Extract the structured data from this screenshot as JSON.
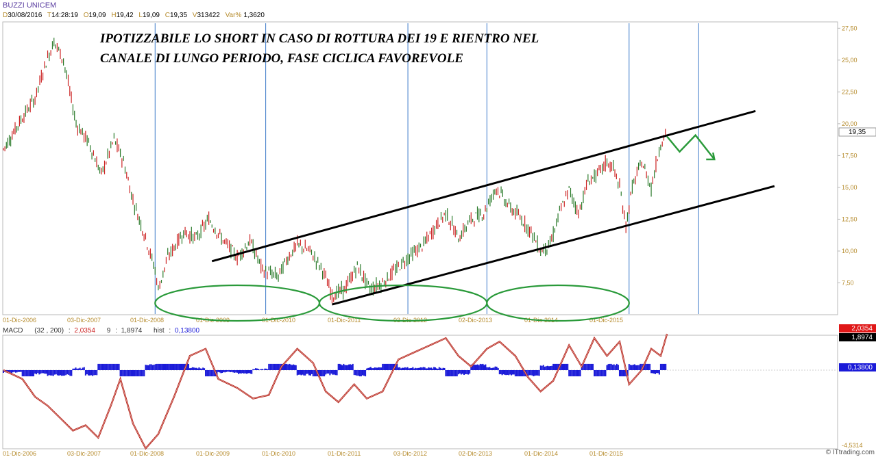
{
  "header": {
    "title": "BUZZI UNICEM",
    "date_label": "D",
    "date": "30/08/2016",
    "time_label": "T",
    "time": "14:28:19",
    "open_label": "O",
    "open": "19,09",
    "high_label": "H",
    "high": "19,42",
    "low_label": "L",
    "low": "19,09",
    "close_label": "C",
    "close": "19,35",
    "volume_label": "V",
    "volume": "313422",
    "var_label": "Var%",
    "var": "1,3620"
  },
  "annotation": {
    "line1": "IPOTIZZABILE LO SHORT IN CASO DI ROTTURA DEI 19 E RIENTRO NEL",
    "line2": "CANALE DI LUNGO PERIODO, FASE CICLICA FAVOREVOLE"
  },
  "chart_data": {
    "type": "line",
    "title": "BUZZI UNICEM",
    "price_panel": {
      "y_ticks": [
        "27,50",
        "25,00",
        "22,50",
        "20,00",
        "17,50",
        "15,00",
        "12,50",
        "10,00",
        "7,50"
      ],
      "ylim": [
        5.0,
        28.0
      ],
      "last_price_label": "19,35",
      "last_price": 19.35,
      "x_ticks": [
        "01-Dic-2006",
        "03-Dic-2007",
        "01-Dic-2008",
        "01-Dic-2009",
        "01-Dic-2010",
        "01-Dic-2011",
        "03-Dic-2012",
        "02-Dic-2013",
        "01-Dic-2014",
        "01-Dic-2015"
      ],
      "price_series": [
        {
          "t": 2006.6,
          "v": 18.0
        },
        {
          "t": 2006.9,
          "v": 20.5
        },
        {
          "t": 2007.1,
          "v": 22.0
        },
        {
          "t": 2007.25,
          "v": 24.5
        },
        {
          "t": 2007.4,
          "v": 26.5
        },
        {
          "t": 2007.55,
          "v": 25.0
        },
        {
          "t": 2007.75,
          "v": 20.0
        },
        {
          "t": 2007.95,
          "v": 18.5
        },
        {
          "t": 2008.15,
          "v": 16.0
        },
        {
          "t": 2008.35,
          "v": 18.8
        },
        {
          "t": 2008.5,
          "v": 17.0
        },
        {
          "t": 2008.65,
          "v": 14.0
        },
        {
          "t": 2008.85,
          "v": 11.0
        },
        {
          "t": 2009.0,
          "v": 8.5
        },
        {
          "t": 2009.05,
          "v": 7.0
        },
        {
          "t": 2009.2,
          "v": 9.5
        },
        {
          "t": 2009.45,
          "v": 11.5
        },
        {
          "t": 2009.65,
          "v": 11.0
        },
        {
          "t": 2009.85,
          "v": 12.5
        },
        {
          "t": 2010.05,
          "v": 11.0
        },
        {
          "t": 2010.3,
          "v": 9.5
        },
        {
          "t": 2010.5,
          "v": 10.8
        },
        {
          "t": 2010.7,
          "v": 8.5
        },
        {
          "t": 2010.95,
          "v": 8.0
        },
        {
          "t": 2011.1,
          "v": 9.5
        },
        {
          "t": 2011.25,
          "v": 10.5
        },
        {
          "t": 2011.45,
          "v": 10.0
        },
        {
          "t": 2011.65,
          "v": 8.5
        },
        {
          "t": 2011.8,
          "v": 6.5
        },
        {
          "t": 2012.0,
          "v": 7.0
        },
        {
          "t": 2012.2,
          "v": 8.8
        },
        {
          "t": 2012.4,
          "v": 7.0
        },
        {
          "t": 2012.6,
          "v": 7.5
        },
        {
          "t": 2012.8,
          "v": 8.5
        },
        {
          "t": 2013.0,
          "v": 9.5
        },
        {
          "t": 2013.25,
          "v": 10.5
        },
        {
          "t": 2013.45,
          "v": 12.0
        },
        {
          "t": 2013.6,
          "v": 13.0
        },
        {
          "t": 2013.8,
          "v": 11.0
        },
        {
          "t": 2014.0,
          "v": 12.5
        },
        {
          "t": 2014.2,
          "v": 13.0
        },
        {
          "t": 2014.4,
          "v": 15.0
        },
        {
          "t": 2014.6,
          "v": 13.5
        },
        {
          "t": 2014.8,
          "v": 12.5
        },
        {
          "t": 2014.95,
          "v": 11.5
        },
        {
          "t": 2015.1,
          "v": 10.0
        },
        {
          "t": 2015.25,
          "v": 10.5
        },
        {
          "t": 2015.4,
          "v": 13.0
        },
        {
          "t": 2015.55,
          "v": 14.8
        },
        {
          "t": 2015.7,
          "v": 13.0
        },
        {
          "t": 2015.85,
          "v": 15.5
        },
        {
          "t": 2016.0,
          "v": 16.0
        },
        {
          "t": 2016.15,
          "v": 17.0
        },
        {
          "t": 2016.25,
          "v": 16.5
        },
        {
          "t": 2016.35,
          "v": 15.0
        },
        {
          "t": 2016.45,
          "v": 12.0
        },
        {
          "t": 2016.55,
          "v": 15.0
        },
        {
          "t": 2016.7,
          "v": 17.0
        },
        {
          "t": 2016.85,
          "v": 15.0
        },
        {
          "t": 2017.0,
          "v": 18.5
        },
        {
          "t": 2017.1,
          "v": 19.35
        }
      ],
      "channel_upper": [
        [
          2009.9,
          9.2
        ],
        [
          2018.5,
          21.0
        ]
      ],
      "channel_lower": [
        [
          2011.8,
          5.8
        ],
        [
          2018.8,
          15.1
        ]
      ],
      "forecast_arrow": [
        [
          2017.1,
          19.0
        ],
        [
          2017.3,
          17.8
        ],
        [
          2017.55,
          19.1
        ],
        [
          2017.85,
          17.2
        ]
      ],
      "cycle_lines_t": [
        2009.0,
        2010.75,
        2013.0,
        2014.25,
        2016.5,
        2017.6
      ],
      "cycle_ellipses": [
        {
          "t_from": 2009.0,
          "t_to": 2011.6
        },
        {
          "t_from": 2011.6,
          "t_to": 2014.25
        },
        {
          "t_from": 2014.25,
          "t_to": 2016.5
        }
      ]
    },
    "macd_panel": {
      "label": "MACD",
      "params": "(32 , 200)",
      "macd_value": "2,0354",
      "signal_label": "9",
      "signal_value": "1,8974",
      "hist_label": "hist",
      "hist_value": "0,13800",
      "min_label": "-4,5314",
      "macd_series": [
        {
          "t": 2006.6,
          "v": 0.0
        },
        {
          "t": 2006.9,
          "v": -0.5
        },
        {
          "t": 2007.1,
          "v": -1.5
        },
        {
          "t": 2007.3,
          "v": -2.0
        },
        {
          "t": 2007.5,
          "v": -2.7
        },
        {
          "t": 2007.7,
          "v": -3.4
        },
        {
          "t": 2007.9,
          "v": -3.1
        },
        {
          "t": 2008.1,
          "v": -3.8
        },
        {
          "t": 2008.3,
          "v": -2.0
        },
        {
          "t": 2008.45,
          "v": -0.5
        },
        {
          "t": 2008.65,
          "v": -3.0
        },
        {
          "t": 2008.85,
          "v": -4.4
        },
        {
          "t": 2009.05,
          "v": -3.6
        },
        {
          "t": 2009.3,
          "v": -1.5
        },
        {
          "t": 2009.55,
          "v": 0.8
        },
        {
          "t": 2009.8,
          "v": 1.2
        },
        {
          "t": 2010.0,
          "v": -0.5
        },
        {
          "t": 2010.3,
          "v": -1.0
        },
        {
          "t": 2010.55,
          "v": -1.6
        },
        {
          "t": 2010.8,
          "v": -1.4
        },
        {
          "t": 2011.0,
          "v": 0.2
        },
        {
          "t": 2011.25,
          "v": 1.2
        },
        {
          "t": 2011.5,
          "v": 0.4
        },
        {
          "t": 2011.7,
          "v": -1.2
        },
        {
          "t": 2011.9,
          "v": -1.8
        },
        {
          "t": 2012.15,
          "v": -0.8
        },
        {
          "t": 2012.35,
          "v": -1.6
        },
        {
          "t": 2012.6,
          "v": -1.2
        },
        {
          "t": 2012.85,
          "v": 0.6
        },
        {
          "t": 2013.1,
          "v": 1.0
        },
        {
          "t": 2013.35,
          "v": 1.4
        },
        {
          "t": 2013.6,
          "v": 1.8
        },
        {
          "t": 2013.8,
          "v": 0.8
        },
        {
          "t": 2014.0,
          "v": 0.2
        },
        {
          "t": 2014.25,
          "v": 1.2
        },
        {
          "t": 2014.45,
          "v": 1.6
        },
        {
          "t": 2014.7,
          "v": 0.8
        },
        {
          "t": 2014.9,
          "v": -0.4
        },
        {
          "t": 2015.1,
          "v": -1.2
        },
        {
          "t": 2015.3,
          "v": -0.6
        },
        {
          "t": 2015.55,
          "v": 1.4
        },
        {
          "t": 2015.75,
          "v": 0.2
        },
        {
          "t": 2015.95,
          "v": 1.8
        },
        {
          "t": 2016.15,
          "v": 0.8
        },
        {
          "t": 2016.35,
          "v": 1.6
        },
        {
          "t": 2016.5,
          "v": -0.8
        },
        {
          "t": 2016.7,
          "v": 0.0
        },
        {
          "t": 2016.85,
          "v": 1.2
        },
        {
          "t": 2017.0,
          "v": 0.8
        },
        {
          "t": 2017.1,
          "v": 2.0354
        }
      ],
      "x_ticks": [
        "01-Dic-2006",
        "03-Dic-2007",
        "01-Dic-2008",
        "01-Dic-2009",
        "01-Dic-2010",
        "01-Dic-2011",
        "03-Dic-2012",
        "02-Dic-2013",
        "01-Dic-2014",
        "01-Dic-2015"
      ]
    }
  },
  "colors": {
    "up_candle": "#cc2222",
    "down_candle": "#2a7a2a",
    "channel": "#000000",
    "cycle_line": "#3a78c8",
    "ellipse": "#2a9a3a",
    "macd_line": "#b8281e",
    "hist": "#1a1ad8",
    "axis_text": "#b58a2a",
    "badge_macd": "#e01818",
    "badge_signal": "#000000",
    "badge_hist": "#1a1ad8"
  },
  "credit": {
    "text": "© ITtrading.com"
  }
}
